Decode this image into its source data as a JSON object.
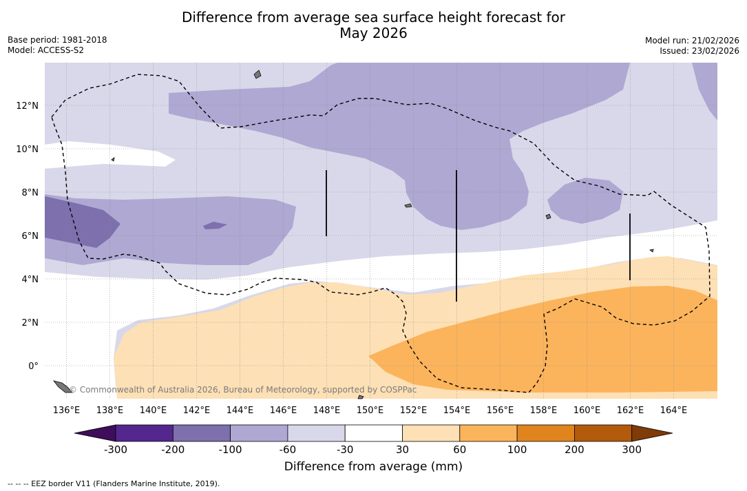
{
  "header": {
    "title_line1": "Difference from average sea surface height forecast for",
    "title_line2": "May 2026",
    "base_period": "Base period: 1981-2018",
    "model": "Model: ACCESS-S2",
    "model_run": "Model run: 21/02/2026",
    "issued": "Issued: 23/02/2026"
  },
  "map": {
    "lon_labels": [
      "136°E",
      "138°E",
      "140°E",
      "142°E",
      "144°E",
      "146°E",
      "148°E",
      "150°E",
      "152°E",
      "154°E",
      "156°E",
      "158°E",
      "160°E",
      "162°E",
      "164°E"
    ],
    "lat_labels": [
      "12°N",
      "10°N",
      "8°N",
      "6°N",
      "4°N",
      "2°N",
      "0°"
    ],
    "credit": "© Commonwealth of Australia 2026, Bureau of Meteorology, supported by COSPPac"
  },
  "colorbar": {
    "colors": [
      "#3f0d5a",
      "#54278f",
      "#7e6fad",
      "#aea8d2",
      "#d8d8ea",
      "#ffffff",
      "#fde0b5",
      "#fbb45c",
      "#e0841e",
      "#b35a0c",
      "#7f3b08"
    ],
    "labels": [
      "-300",
      "-200",
      "-100",
      "-60",
      "-30",
      "30",
      "60",
      "100",
      "200",
      "300"
    ],
    "title": "Difference from average (mm)"
  },
  "footnote": "--  --  -- EEZ border V11 (Flanders Marine Institute, 2019)."
}
